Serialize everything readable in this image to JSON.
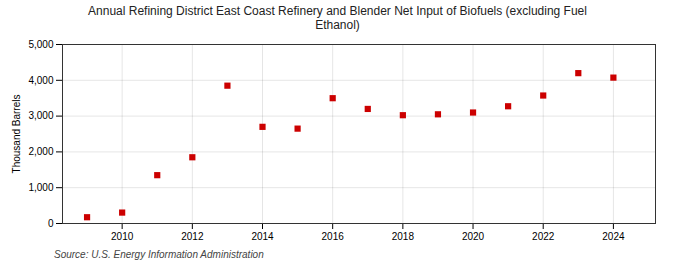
{
  "chart_data": {
    "type": "scatter",
    "title": "Annual Refining District East Coast Refinery and Blender Net Input of Biofuels (excluding Fuel\nEthanol)",
    "ylabel": "Thousand Barrels",
    "source": "Source: U.S. Energy Information Administration",
    "x": [
      2009,
      2010,
      2011,
      2012,
      2013,
      2014,
      2015,
      2016,
      2017,
      2018,
      2019,
      2020,
      2021,
      2022,
      2023,
      2024
    ],
    "values": [
      175,
      305,
      1350,
      1850,
      3850,
      2700,
      2650,
      3500,
      3200,
      3025,
      3050,
      3100,
      3275,
      3575,
      4200,
      4075
    ],
    "color": "#cc0000",
    "marker": "square",
    "xlim": [
      2008.3,
      2025.2
    ],
    "xticks": [
      2010,
      2012,
      2014,
      2016,
      2018,
      2020,
      2022,
      2024
    ],
    "ylim": [
      0,
      5000
    ],
    "yticks": [
      0,
      {
        "value": 1000,
        "label": "1,000"
      },
      {
        "value": 2000,
        "label": "2,000"
      },
      {
        "value": 3000,
        "label": "3,000"
      },
      {
        "value": 4000,
        "label": "4,000"
      },
      {
        "value": 5000,
        "label": "5,000"
      }
    ],
    "grid": true
  }
}
